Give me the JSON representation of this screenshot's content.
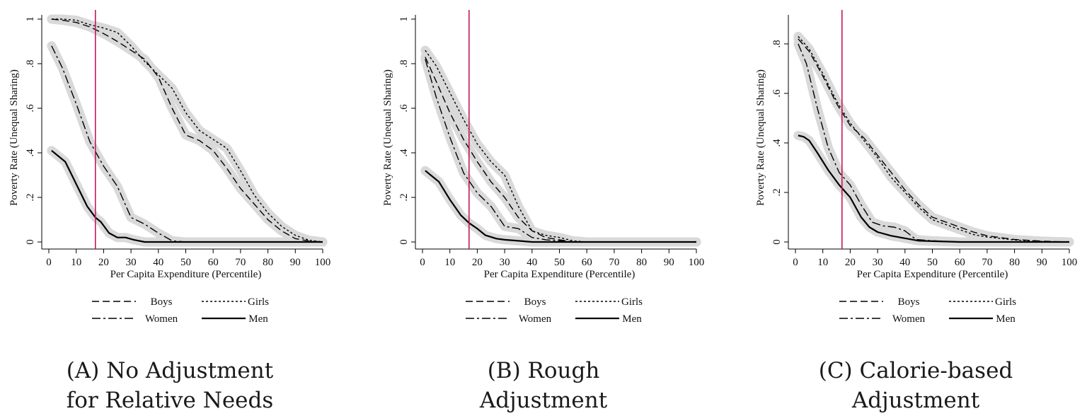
{
  "chart_data": [
    {
      "type": "line",
      "caption": [
        "(A) No Adjustment",
        "for Relative Needs"
      ],
      "xlabel": "Per Capita Expenditure (Percentile)",
      "ylabel": "Poverty Rate (Unequal Sharing)",
      "xlim": [
        0,
        100
      ],
      "ylim": [
        0,
        1
      ],
      "xticks": [
        "0",
        "10",
        "20",
        "30",
        "40",
        "50",
        "60",
        "70",
        "80",
        "90",
        "100"
      ],
      "yticks": [
        "0",
        ".2",
        ".4",
        ".6",
        ".8",
        "1"
      ],
      "vline_x": 17,
      "series": [
        {
          "name": "Boys",
          "style": "dash",
          "x": [
            1,
            5,
            10,
            15,
            20,
            25,
            30,
            35,
            40,
            45,
            50,
            55,
            60,
            65,
            70,
            75,
            80,
            85,
            90,
            95,
            100
          ],
          "y": [
            1.0,
            0.995,
            0.985,
            0.965,
            0.935,
            0.9,
            0.86,
            0.82,
            0.74,
            0.6,
            0.48,
            0.455,
            0.41,
            0.33,
            0.24,
            0.17,
            0.1,
            0.05,
            0.015,
            0.004,
            0.0
          ]
        },
        {
          "name": "Girls",
          "style": "dot",
          "x": [
            1,
            5,
            10,
            15,
            20,
            25,
            30,
            35,
            40,
            45,
            50,
            55,
            60,
            65,
            70,
            75,
            80,
            85,
            90,
            95,
            100
          ],
          "y": [
            1.0,
            1.0,
            0.995,
            0.975,
            0.96,
            0.94,
            0.88,
            0.81,
            0.75,
            0.69,
            0.58,
            0.5,
            0.46,
            0.42,
            0.32,
            0.21,
            0.13,
            0.07,
            0.03,
            0.008,
            0.0
          ]
        },
        {
          "name": "Women",
          "style": "dashdot",
          "x": [
            1,
            5,
            10,
            15,
            20,
            25,
            30,
            35,
            40,
            45,
            50,
            55,
            60,
            70,
            80,
            90,
            100
          ],
          "y": [
            0.88,
            0.78,
            0.62,
            0.45,
            0.34,
            0.25,
            0.11,
            0.08,
            0.04,
            0.005,
            0.0,
            0.0,
            0.0,
            0.0,
            0.0,
            0.0,
            0.0
          ]
        },
        {
          "name": "Men",
          "style": "solid",
          "x": [
            1,
            3,
            6,
            10,
            14,
            17,
            19,
            22,
            25,
            28,
            31,
            35,
            40,
            50,
            60,
            70,
            80,
            90,
            100
          ],
          "y": [
            0.41,
            0.39,
            0.36,
            0.26,
            0.16,
            0.11,
            0.09,
            0.04,
            0.02,
            0.02,
            0.01,
            0.0,
            0.0,
            0.0,
            0.0,
            0.0,
            0.0,
            0.0,
            0.0
          ]
        }
      ]
    },
    {
      "type": "line",
      "caption": [
        "(B) Rough",
        "Adjustment"
      ],
      "xlabel": "Per Capita Expenditure (Percentile)",
      "ylabel": "Poverty Rate (Unequal Sharing)",
      "xlim": [
        0,
        100
      ],
      "ylim": [
        0,
        1
      ],
      "xticks": [
        "0",
        "10",
        "20",
        "30",
        "40",
        "50",
        "60",
        "70",
        "80",
        "90",
        "100"
      ],
      "yticks": [
        "0",
        ".2",
        ".4",
        ".6",
        ".8",
        "1"
      ],
      "vline_x": 17,
      "series": [
        {
          "name": "Boys",
          "style": "dash",
          "x": [
            1,
            5,
            10,
            15,
            20,
            25,
            30,
            35,
            40,
            45,
            50,
            55,
            60,
            70,
            80,
            90,
            100
          ],
          "y": [
            0.83,
            0.72,
            0.58,
            0.46,
            0.36,
            0.27,
            0.2,
            0.11,
            0.05,
            0.02,
            0.01,
            0.0,
            0.0,
            0.0,
            0.0,
            0.0,
            0.0
          ]
        },
        {
          "name": "Girls",
          "style": "dot",
          "x": [
            1,
            5,
            10,
            15,
            20,
            25,
            30,
            35,
            40,
            45,
            50,
            55,
            60,
            70,
            80,
            90,
            100
          ],
          "y": [
            0.86,
            0.79,
            0.67,
            0.55,
            0.44,
            0.36,
            0.3,
            0.16,
            0.05,
            0.03,
            0.02,
            0.005,
            0.0,
            0.0,
            0.0,
            0.0,
            0.0
          ]
        },
        {
          "name": "Women",
          "style": "dashdot",
          "x": [
            1,
            5,
            10,
            15,
            20,
            25,
            30,
            35,
            40,
            45,
            50,
            55,
            60,
            70,
            80,
            90,
            100
          ],
          "y": [
            0.82,
            0.65,
            0.47,
            0.31,
            0.22,
            0.16,
            0.07,
            0.06,
            0.02,
            0.01,
            0.005,
            0.0,
            0.0,
            0.0,
            0.0,
            0.0,
            0.0
          ]
        },
        {
          "name": "Men",
          "style": "solid",
          "x": [
            1,
            3,
            6,
            10,
            14,
            17,
            20,
            23,
            27,
            30,
            35,
            40,
            50,
            60,
            70,
            80,
            90,
            100
          ],
          "y": [
            0.32,
            0.3,
            0.27,
            0.19,
            0.12,
            0.085,
            0.06,
            0.03,
            0.015,
            0.01,
            0.005,
            0.0,
            0.0,
            0.0,
            0.0,
            0.0,
            0.0,
            0.0
          ]
        }
      ]
    },
    {
      "type": "line",
      "caption": [
        "(C) Calorie-based",
        "Adjustment"
      ],
      "xlabel": "Per Capita Expenditure (Percentile)",
      "ylabel": "Poverty Rate (Unequal Sharing)",
      "xlim": [
        0,
        100
      ],
      "ylim": [
        0,
        0.9
      ],
      "xticks": [
        "0",
        "10",
        "20",
        "30",
        "40",
        "50",
        "60",
        "70",
        "80",
        "90",
        "100"
      ],
      "yticks": [
        "0",
        ".2",
        ".4",
        ".6",
        ".8"
      ],
      "vline_x": 17,
      "series": [
        {
          "name": "Boys",
          "style": "dash",
          "x": [
            1,
            5,
            10,
            15,
            20,
            25,
            30,
            35,
            40,
            45,
            50,
            55,
            60,
            65,
            70,
            80,
            90,
            100
          ],
          "y": [
            0.82,
            0.77,
            0.67,
            0.56,
            0.47,
            0.42,
            0.35,
            0.28,
            0.21,
            0.15,
            0.1,
            0.08,
            0.06,
            0.04,
            0.025,
            0.01,
            0.003,
            0.0
          ]
        },
        {
          "name": "Girls",
          "style": "dot",
          "x": [
            1,
            5,
            10,
            15,
            20,
            25,
            30,
            35,
            40,
            45,
            50,
            55,
            60,
            65,
            70,
            80,
            90,
            100
          ],
          "y": [
            0.83,
            0.78,
            0.68,
            0.57,
            0.48,
            0.41,
            0.34,
            0.26,
            0.2,
            0.14,
            0.09,
            0.07,
            0.05,
            0.03,
            0.02,
            0.008,
            0.002,
            0.0
          ]
        },
        {
          "name": "Women",
          "style": "dashdot",
          "x": [
            1,
            4,
            8,
            12,
            16,
            20,
            24,
            28,
            32,
            36,
            40,
            44,
            50,
            60,
            70,
            80,
            90,
            100
          ],
          "y": [
            0.8,
            0.72,
            0.54,
            0.38,
            0.28,
            0.23,
            0.15,
            0.08,
            0.065,
            0.06,
            0.045,
            0.01,
            0.005,
            0.0,
            0.0,
            0.0,
            0.0,
            0.0
          ]
        },
        {
          "name": "Men",
          "style": "solid",
          "x": [
            1,
            3,
            5,
            8,
            12,
            16,
            20,
            24,
            27,
            30,
            35,
            40,
            45,
            50,
            60,
            70,
            80,
            90,
            100
          ],
          "y": [
            0.43,
            0.425,
            0.41,
            0.36,
            0.29,
            0.23,
            0.18,
            0.1,
            0.06,
            0.04,
            0.025,
            0.015,
            0.005,
            0.003,
            0.0,
            0.0,
            0.0,
            0.0,
            0.0
          ]
        }
      ]
    }
  ]
}
